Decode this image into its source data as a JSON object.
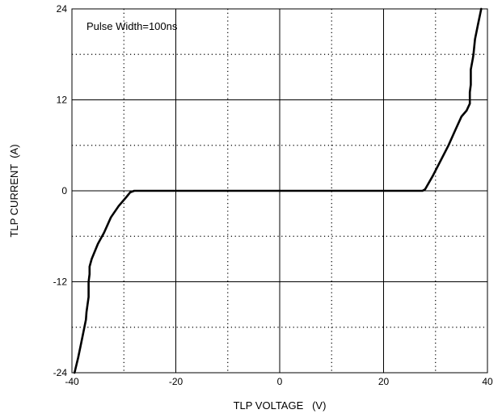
{
  "chart_data": {
    "type": "line",
    "title": "",
    "annotation": "Pulse Width=100ns",
    "xlabel": "TLP VOLTAGE   (V)",
    "ylabel": "TLP CURRENT  (A)",
    "xlim": [
      -40,
      40
    ],
    "ylim": [
      -24,
      24
    ],
    "x_major_ticks": [
      -40,
      -20,
      0,
      20,
      40
    ],
    "y_major_ticks": [
      -24,
      -12,
      0,
      12,
      24
    ],
    "x_minor_grid": [
      -30,
      -10,
      10,
      30
    ],
    "y_minor_grid": [
      -18,
      -6,
      6,
      18
    ],
    "grid": true,
    "series": [
      {
        "name": "",
        "x": [
          -39.5,
          -38.8,
          -38.2,
          -37.6,
          -37.3,
          -37.2,
          -36.8,
          -36.8,
          -36.6,
          -36.6,
          -36.2,
          -35.0,
          -33.8,
          -32.5,
          -31.0,
          -29.5,
          -28.8,
          -28.0,
          -20.0,
          -10.0,
          0.0,
          10.0,
          20.0,
          27.5,
          28.0,
          29.5,
          31.0,
          32.5,
          33.8,
          35.0,
          36.0,
          36.6,
          36.6,
          36.8,
          36.8,
          37.2,
          37.3,
          37.6,
          38.2,
          38.8
        ],
        "y": [
          -24.0,
          -22.0,
          -20.0,
          -18.0,
          -17.0,
          -16.0,
          -14.0,
          -12.0,
          -11.0,
          -10.0,
          -9.0,
          -7.0,
          -5.5,
          -3.5,
          -2.0,
          -0.8,
          -0.2,
          0.0,
          0.0,
          0.0,
          0.0,
          0.0,
          0.0,
          0.0,
          0.2,
          2.0,
          4.0,
          6.0,
          8.0,
          9.8,
          10.6,
          11.5,
          13.0,
          14.0,
          16.0,
          17.5,
          18.0,
          20.0,
          22.0,
          24.0
        ]
      }
    ]
  },
  "colors": {
    "curve": "#000000",
    "axes": "#000000",
    "grid": "#000000",
    "background": "#ffffff"
  }
}
